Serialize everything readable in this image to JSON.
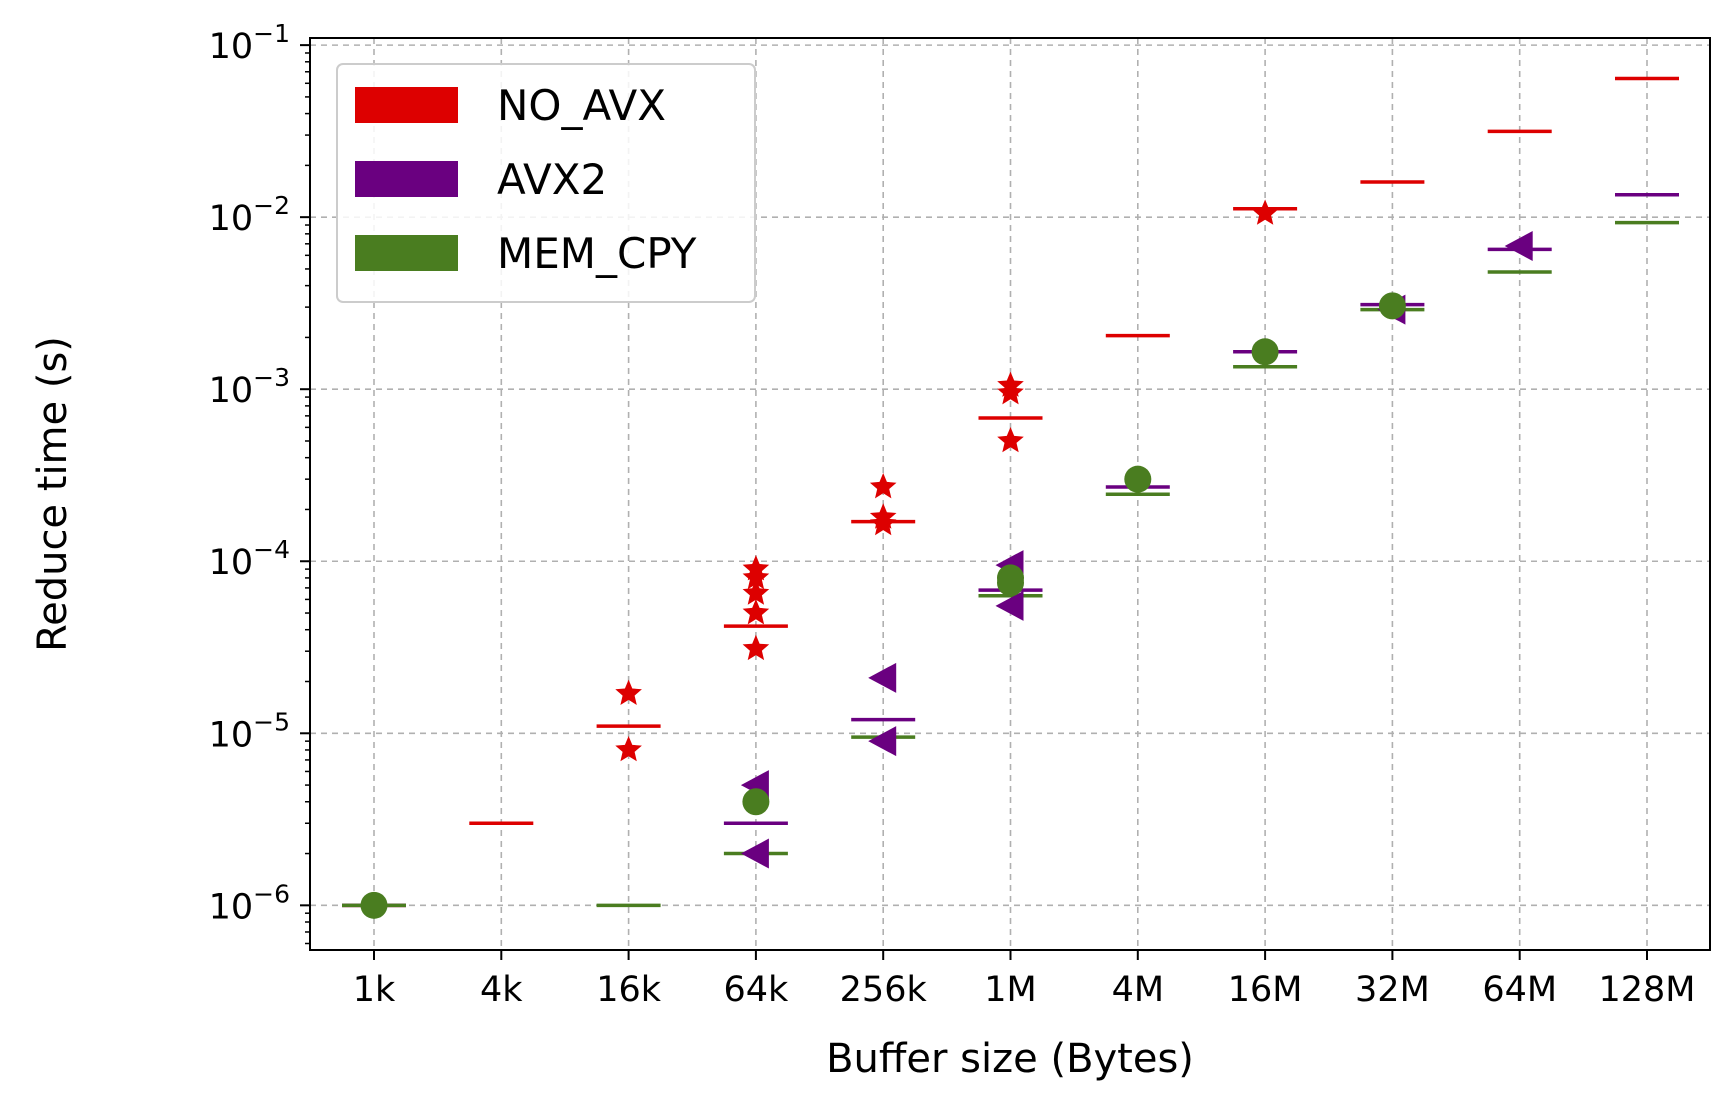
{
  "chart_data": {
    "type": "scatter",
    "title": "",
    "xlabel": "Buffer size (Bytes)",
    "ylabel": "Reduce time (s)",
    "yscale": "log",
    "ylim": [
      5.5e-07,
      0.11
    ],
    "yticks": [
      {
        "value": 1e-06,
        "base": "10",
        "exp": "−6"
      },
      {
        "value": 1e-05,
        "base": "10",
        "exp": "−5"
      },
      {
        "value": 0.0001,
        "base": "10",
        "exp": "−4"
      },
      {
        "value": 0.001,
        "base": "10",
        "exp": "−3"
      },
      {
        "value": 0.01,
        "base": "10",
        "exp": "−2"
      },
      {
        "value": 0.1,
        "base": "10",
        "exp": "−1"
      }
    ],
    "categories": [
      "1k",
      "4k",
      "16k",
      "64k",
      "256k",
      "1M",
      "4M",
      "16M",
      "32M",
      "64M",
      "128M"
    ],
    "grid": true,
    "legend_position": "top-left",
    "series": [
      {
        "name": "NO_AVX",
        "color": "#dd0000",
        "marker": "star",
        "medians": [
          1e-06,
          3e-06,
          1.1e-05,
          4.2e-05,
          0.00017,
          0.00068,
          0.00205,
          0.0112,
          0.016,
          0.0315,
          0.064
        ],
        "outliers": [
          [],
          [],
          [
            1.7e-05,
            8e-06
          ],
          [
            9e-05,
            8e-05,
            6.5e-05,
            5e-05,
            3.1e-05
          ],
          [
            0.00027,
            0.00018,
            0.000165
          ],
          [
            0.00105,
            0.00095,
            0.0005
          ],
          [],
          [
            0.0105
          ],
          [],
          [],
          []
        ]
      },
      {
        "name": "AVX2",
        "color": "#6a0080",
        "marker": "triangle-left",
        "medians": [
          1e-06,
          null,
          null,
          3e-06,
          1.2e-05,
          6.8e-05,
          0.00027,
          0.00165,
          0.0031,
          0.0065,
          0.0135
        ],
        "outliers": [
          [],
          [],
          [],
          [
            5e-06,
            2e-06
          ],
          [
            2.1e-05,
            9e-06
          ],
          [
            9.5e-05,
            5.5e-05
          ],
          [],
          [],
          [
            0.0029
          ],
          [
            0.0068
          ],
          []
        ]
      },
      {
        "name": "MEM_CPY",
        "color": "#4a7d20",
        "marker": "circle",
        "medians": [
          1e-06,
          null,
          1e-06,
          2e-06,
          9.5e-06,
          6.3e-05,
          0.000245,
          0.00135,
          0.0029,
          0.0048,
          0.0093
        ],
        "outliers": [
          [
            1e-06
          ],
          [],
          [],
          [
            4e-06
          ],
          [],
          [
            8e-05,
            7.5e-05
          ],
          [
            0.0003
          ],
          [
            0.00165
          ],
          [
            0.00305
          ],
          [],
          []
        ]
      }
    ]
  }
}
